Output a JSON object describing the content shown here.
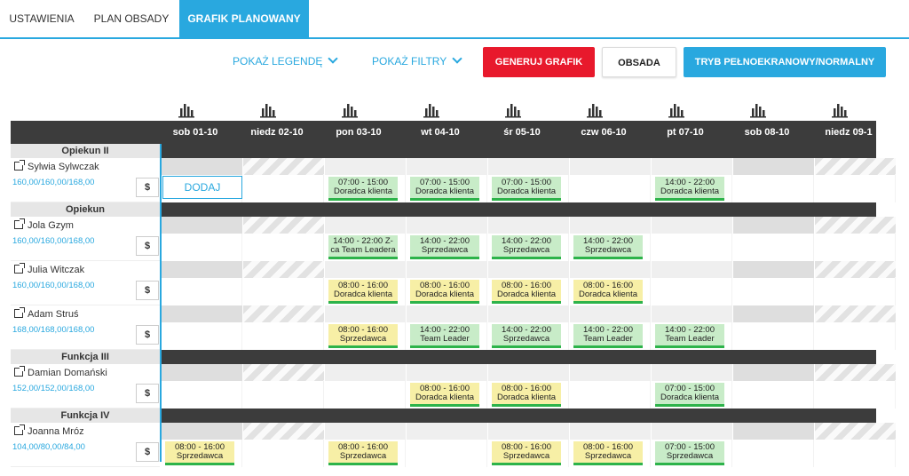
{
  "tabs": [
    "USTAWIENIA",
    "PLAN OBSADY",
    "GRAFIK PLANOWANY"
  ],
  "toolbar": {
    "legend": "POKAŻ LEGENDĘ",
    "filters": "POKAŻ FILTRY",
    "generate": "GENERUJ GRAFIK",
    "staffing": "OBSADA",
    "fullscreen": "TRYB PEŁNOEKRANOWY/NORMALNY"
  },
  "colors": {
    "accent": "#29a8df",
    "danger": "#e8192c",
    "shift_green": "#c8ecc8",
    "shift_yellow": "#f7efa6",
    "shift_bar": "#2db34a",
    "header": "#3c3c3c"
  },
  "icons": {
    "chart": "bar-chart-icon",
    "external": "external-link-icon",
    "chevron": "chevron-down-icon"
  },
  "days": [
    "sob 01-10",
    "niedz 02-10",
    "pon 03-10",
    "wt 04-10",
    "śr 05-10",
    "czw 06-10",
    "pt 07-10",
    "sob 08-10",
    "niedz 09-1"
  ],
  "add_label": "DODAJ",
  "dollar": "$",
  "rows": [
    {
      "type": "group",
      "label": "Opiekun II"
    },
    {
      "type": "emp",
      "name": "Sylwia Sylwczak",
      "hours": "160,00/160,00/168,00",
      "add_at": 0,
      "shifts": [
        null,
        null,
        {
          "t": "07:00 - 15:00",
          "r": "Doradca klienta",
          "c": "green"
        },
        {
          "t": "07:00 - 15:00",
          "r": "Doradca klienta",
          "c": "green"
        },
        {
          "t": "07:00 - 15:00",
          "r": "Doradca klienta",
          "c": "green"
        },
        null,
        {
          "t": "14:00 - 22:00",
          "r": "Doradca klienta",
          "c": "green"
        },
        null,
        null
      ]
    },
    {
      "type": "group",
      "label": "Opiekun"
    },
    {
      "type": "emp",
      "name": "Jola Gzym",
      "hours": "160,00/160,00/168,00",
      "shifts": [
        null,
        null,
        {
          "t": "14:00 - 22:00 Z-",
          "r": "ca Team Leadera",
          "c": "green"
        },
        {
          "t": "14:00 - 22:00",
          "r": "Sprzedawca",
          "c": "green"
        },
        {
          "t": "14:00 - 22:00",
          "r": "Sprzedawca",
          "c": "green"
        },
        {
          "t": "14:00 - 22:00",
          "r": "Sprzedawca",
          "c": "green"
        },
        null,
        null,
        null
      ]
    },
    {
      "type": "emp",
      "name": "Julia Witczak",
      "hours": "160,00/160,00/168,00",
      "shifts": [
        null,
        null,
        {
          "t": "08:00 - 16:00",
          "r": "Doradca klienta",
          "c": "yellow"
        },
        {
          "t": "08:00 - 16:00",
          "r": "Doradca klienta",
          "c": "yellow"
        },
        {
          "t": "08:00 - 16:00",
          "r": "Doradca klienta",
          "c": "yellow"
        },
        {
          "t": "08:00 - 16:00",
          "r": "Doradca klienta",
          "c": "yellow"
        },
        null,
        null,
        null
      ]
    },
    {
      "type": "emp",
      "name": "Adam Struś",
      "hours": "168,00/168,00/168,00",
      "shifts": [
        null,
        null,
        {
          "t": "08:00 - 16:00",
          "r": "Sprzedawca",
          "c": "yellow"
        },
        {
          "t": "14:00 - 22:00",
          "r": "Team Leader",
          "c": "green"
        },
        {
          "t": "14:00 - 22:00",
          "r": "Sprzedawca",
          "c": "green"
        },
        {
          "t": "14:00 - 22:00",
          "r": "Team Leader",
          "c": "green"
        },
        {
          "t": "14:00 - 22:00",
          "r": "Team Leader",
          "c": "green"
        },
        null,
        null
      ]
    },
    {
      "type": "group",
      "label": "Funkcja III"
    },
    {
      "type": "emp",
      "name": "Damian Domański",
      "hours": "152,00/152,00/168,00",
      "shifts": [
        null,
        null,
        null,
        {
          "t": "08:00 - 16:00",
          "r": "Doradca klienta",
          "c": "yellow"
        },
        {
          "t": "08:00 - 16:00",
          "r": "Doradca klienta",
          "c": "yellow"
        },
        null,
        {
          "t": "07:00 - 15:00",
          "r": "Doradca klienta",
          "c": "green"
        },
        null,
        null
      ]
    },
    {
      "type": "group",
      "label": "Funkcja IV"
    },
    {
      "type": "emp",
      "name": "Joanna Mróz",
      "hours": "104,00/80,00/84,00",
      "shifts": [
        {
          "t": "08:00 - 16:00",
          "r": "Sprzedawca",
          "c": "yellow"
        },
        null,
        {
          "t": "08:00 - 16:00",
          "r": "Sprzedawca",
          "c": "yellow"
        },
        null,
        {
          "t": "08:00 - 16:00",
          "r": "Sprzedawca",
          "c": "yellow"
        },
        {
          "t": "08:00 - 16:00",
          "r": "Sprzedawca",
          "c": "yellow"
        },
        {
          "t": "07:00 - 15:00",
          "r": "Sprzedawca",
          "c": "green"
        },
        null,
        null
      ]
    }
  ]
}
